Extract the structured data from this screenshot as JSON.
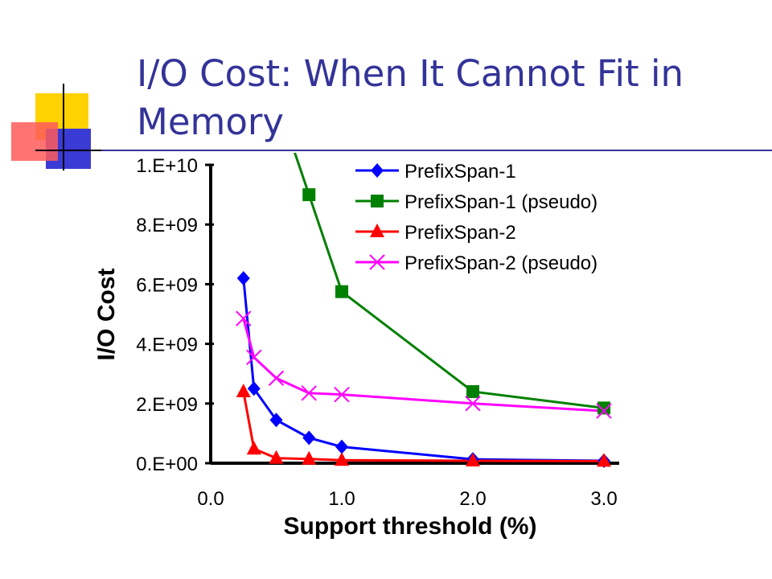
{
  "slide": {
    "title": "I/O Cost: When It Cannot Fit in Memory"
  },
  "colors": {
    "title": "#333399",
    "rule": "#333399",
    "PrefixSpan-1": "#0000ff",
    "PrefixSpan-1 (pseudo)": "#008000",
    "PrefixSpan-2": "#ff0000",
    "PrefixSpan-2 (pseudo)": "#ff00ff"
  },
  "chart_data": {
    "type": "line",
    "title": "",
    "xlabel": "Support threshold (%)",
    "ylabel": "I/O Cost",
    "x_axis": {
      "ticks": [
        0.0,
        1.0,
        2.0,
        3.0
      ],
      "tick_labels": [
        "0.0",
        "1.0",
        "2.0",
        "3.0"
      ],
      "tick_positions": [
        0,
        1,
        2,
        3
      ]
    },
    "y_axis": {
      "ticks": [
        0,
        2000000000,
        4000000000,
        6000000000,
        8000000000,
        10000000000
      ],
      "tick_labels": [
        "0.E+00",
        "2.E+09",
        "4.E+09",
        "6.E+09",
        "8.E+09",
        "1.E+10"
      ],
      "ylim": [
        0,
        10000000000
      ]
    },
    "grid": false,
    "legend": "top-right",
    "series": [
      {
        "name": "PrefixSpan-1",
        "marker": "diamond",
        "points": [
          [
            0.25,
            6200000000
          ],
          [
            0.33,
            2500000000
          ],
          [
            0.5,
            1450000000
          ],
          [
            0.75,
            850000000
          ],
          [
            1.0,
            550000000
          ],
          [
            2.0,
            130000000
          ],
          [
            3.0,
            80000000
          ]
        ]
      },
      {
        "name": "PrefixSpan-1 (pseudo)",
        "marker": "square",
        "points": [
          [
            0.75,
            9000000000
          ],
          [
            1.0,
            5750000000
          ],
          [
            2.0,
            2400000000
          ],
          [
            3.0,
            1850000000
          ]
        ],
        "continues_above_top": true
      },
      {
        "name": "PrefixSpan-2",
        "marker": "triangle",
        "points": [
          [
            0.25,
            2400000000
          ],
          [
            0.33,
            480000000
          ],
          [
            0.5,
            170000000
          ],
          [
            0.75,
            140000000
          ],
          [
            1.0,
            100000000
          ],
          [
            2.0,
            80000000
          ],
          [
            3.0,
            70000000
          ]
        ]
      },
      {
        "name": "PrefixSpan-2 (pseudo)",
        "marker": "x",
        "points": [
          [
            0.25,
            4850000000
          ],
          [
            0.33,
            3550000000
          ],
          [
            0.5,
            2850000000
          ],
          [
            0.75,
            2350000000
          ],
          [
            1.0,
            2300000000
          ],
          [
            2.0,
            2000000000
          ],
          [
            3.0,
            1750000000
          ]
        ]
      }
    ]
  }
}
